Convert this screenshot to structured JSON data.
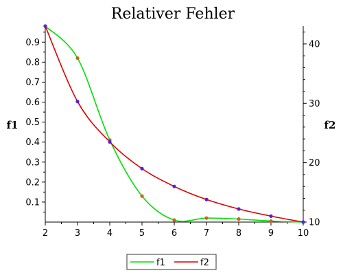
{
  "chart_data": {
    "type": "line",
    "title": "Relativer Fehler",
    "xlabel": "",
    "ylabel": "f1",
    "y2label": "f2",
    "xlim": [
      2,
      10
    ],
    "ylim": [
      0,
      0.98
    ],
    "y2lim": [
      10,
      43
    ],
    "x_ticks": [
      2,
      3,
      4,
      5,
      6,
      7,
      8,
      9,
      10
    ],
    "y_ticks": [
      0.1,
      0.2,
      0.3,
      0.4,
      0.5,
      0.6,
      0.7,
      0.8,
      0.9
    ],
    "y2_ticks": [
      10,
      20,
      30,
      40
    ],
    "grid": false,
    "legend": "bottom",
    "series": [
      {
        "name": "f1",
        "axis": "left",
        "color": "#00e000",
        "marker_color": "#d06020",
        "x": [
          2,
          3,
          4,
          5,
          6,
          7,
          8,
          9,
          10
        ],
        "values": [
          0.98,
          0.82,
          0.41,
          0.13,
          0.01,
          0.02,
          0.015,
          0.005,
          0.0
        ]
      },
      {
        "name": "f2",
        "axis": "right",
        "color": "#e00000",
        "marker_color": "#5020e0",
        "x": [
          2,
          3,
          4,
          5,
          6,
          7,
          8,
          9,
          10
        ],
        "values": [
          43,
          30.3,
          23.5,
          19.0,
          16.0,
          13.8,
          12.2,
          11.0,
          10.0
        ]
      }
    ]
  }
}
